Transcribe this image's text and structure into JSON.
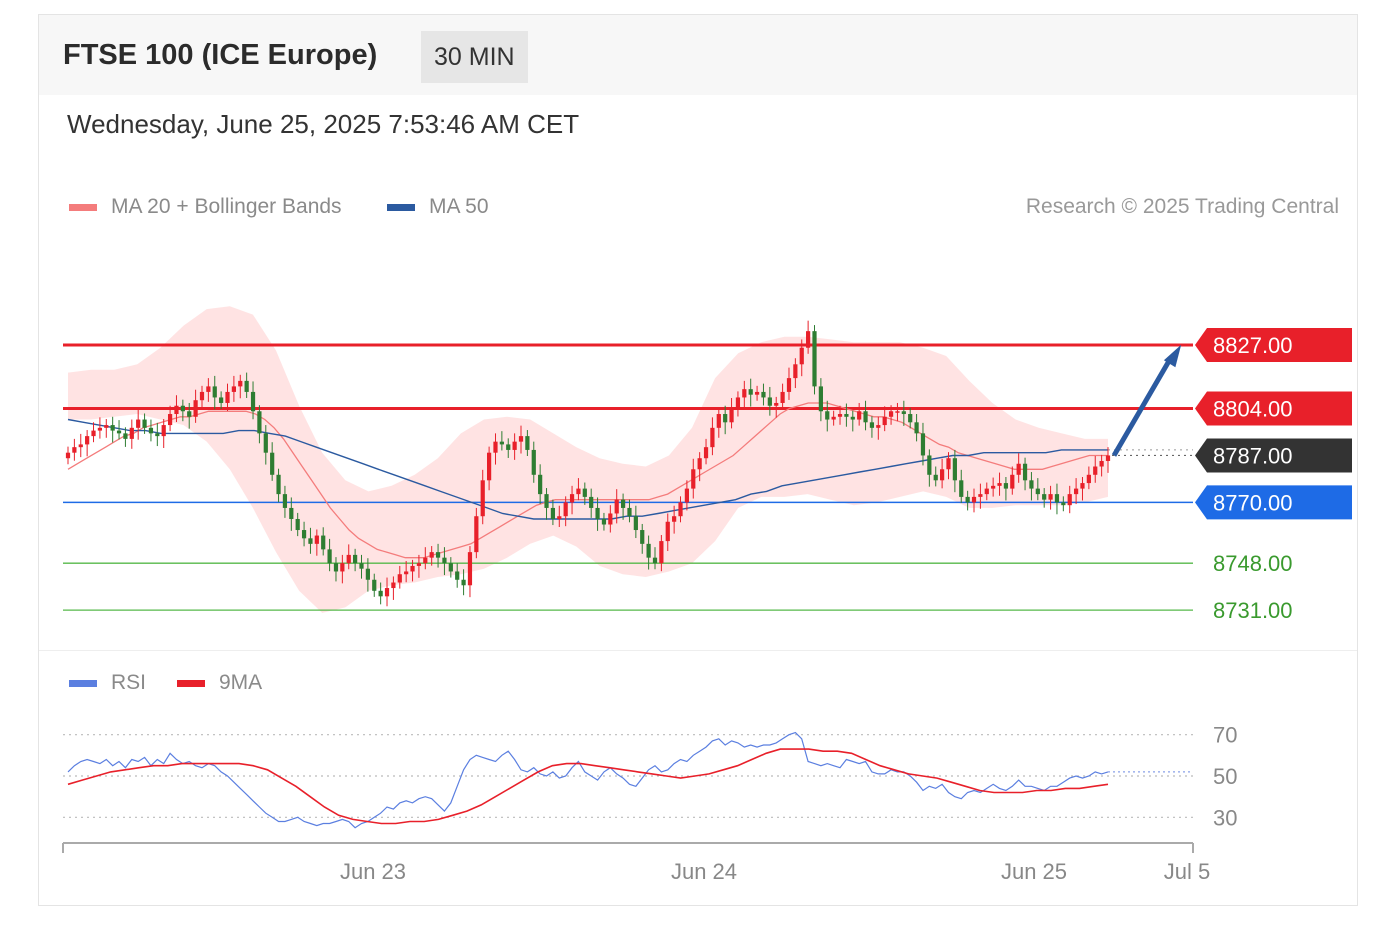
{
  "header": {
    "title": "FTSE 100 (ICE Europe)",
    "interval": "30 MIN",
    "datetime": "Wednesday, June 25, 2025 7:53:46 AM CET"
  },
  "legend": {
    "ma20": {
      "label": "MA 20 + Bollinger Bands",
      "color": "#f47c7c"
    },
    "ma50": {
      "label": "MA 50",
      "color": "#2b5aa0"
    },
    "credit": "Research © 2025 Trading Central"
  },
  "rsi_legend": {
    "rsi": {
      "label": "RSI",
      "color": "#5b7fe0"
    },
    "ma9": {
      "label": "9MA",
      "color": "#e8202a"
    }
  },
  "colors": {
    "resistance": "#e8202a",
    "pivot": "#1e6be6",
    "support": "#56b84a",
    "last": "#333333",
    "candle_up": "#e8202a",
    "candle_down": "#2e7d32",
    "band": "#ffdede",
    "arrow": "#2b5aa0"
  },
  "chart_data": [
    {
      "type": "candlestick",
      "title": "FTSE 100 (ICE Europe)",
      "timeframe": "30 MIN",
      "ylim": [
        8722,
        8865
      ],
      "x_ticks": [
        "Jun 23",
        "Jun 24",
        "Jun 25",
        "Jul 5"
      ],
      "levels": [
        {
          "value": 8827,
          "label": "8827.00",
          "kind": "resistance"
        },
        {
          "value": 8804,
          "label": "8804.00",
          "kind": "resistance"
        },
        {
          "value": 8787,
          "label": "8787.00",
          "kind": "last"
        },
        {
          "value": 8770,
          "label": "8770.00",
          "kind": "pivot"
        },
        {
          "value": 8748,
          "label": "8748.00",
          "kind": "support"
        },
        {
          "value": 8731,
          "label": "8731.00",
          "kind": "support"
        }
      ],
      "close": [
        8788,
        8790,
        8791,
        8794,
        8796,
        8797,
        8798,
        8796,
        8795,
        8793,
        8797,
        8800,
        8797,
        8795,
        8794,
        8798,
        8802,
        8805,
        8803,
        8801,
        8807,
        8810,
        8812,
        8808,
        8806,
        8810,
        8812,
        8814,
        8810,
        8803,
        8795,
        8788,
        8780,
        8773,
        8768,
        8764,
        8760,
        8757,
        8755,
        8758,
        8753,
        8748,
        8745,
        8748,
        8751,
        8748,
        8746,
        8742,
        8738,
        8736,
        8739,
        8741,
        8744,
        8745,
        8747,
        8748,
        8750,
        8752,
        8750,
        8748,
        8745,
        8742,
        8740,
        8752,
        8765,
        8778,
        8788,
        8792,
        8791,
        8789,
        8792,
        8794,
        8789,
        8780,
        8773,
        8768,
        8764,
        8765,
        8770,
        8773,
        8775,
        8772,
        8768,
        8764,
        8762,
        8766,
        8771,
        8768,
        8765,
        8760,
        8755,
        8750,
        8748,
        8756,
        8763,
        8765,
        8770,
        8775,
        8782,
        8786,
        8790,
        8797,
        8802,
        8799,
        8804,
        8808,
        8811,
        8809,
        8810,
        8808,
        8805,
        8806,
        8810,
        8815,
        8820,
        8826,
        8832,
        8812,
        8803,
        8800,
        8801,
        8802,
        8801,
        8800,
        8803,
        8799,
        8797,
        8798,
        8801,
        8803,
        8803,
        8802,
        8799,
        8795,
        8787,
        8780,
        8778,
        8782,
        8786,
        8778,
        8772,
        8770,
        8772,
        8773,
        8775,
        8776,
        8777,
        8775,
        8780,
        8784,
        8778,
        8775,
        8773,
        8771,
        8773,
        8770,
        8769,
        8773,
        8775,
        8777,
        8780,
        8783,
        8785,
        8787
      ],
      "ma20": [
        8782,
        8784,
        8786,
        8788,
        8790,
        8792,
        8794,
        8795,
        8797,
        8798,
        8799,
        8800,
        8801,
        8801,
        8802,
        8803,
        8803,
        8803,
        8803,
        8803,
        8802,
        8800,
        8797,
        8793,
        8788,
        8783,
        8778,
        8773,
        8768,
        8764,
        8760,
        8757,
        8755,
        8753,
        8752,
        8751,
        8750,
        8750,
        8750,
        8751,
        8752,
        8753,
        8754,
        8755,
        8757,
        8759,
        8761,
        8763,
        8765,
        8767,
        8769,
        8770,
        8771,
        8771,
        8771,
        8771,
        8771,
        8771,
        8771,
        8771,
        8771,
        8771,
        8771,
        8772,
        8773,
        8775,
        8777,
        8779,
        8781,
        8783,
        8785,
        8787,
        8790,
        8793,
        8796,
        8799,
        8802,
        8804,
        8805,
        8806,
        8806,
        8806,
        8805,
        8804,
        8803,
        8802,
        8801,
        8801,
        8800,
        8799,
        8797,
        8795,
        8793,
        8791,
        8790,
        8788,
        8787,
        8786,
        8785,
        8784,
        8783,
        8782,
        8782,
        8782,
        8782,
        8783,
        8784,
        8785,
        8786,
        8787,
        8787,
        8787
      ],
      "ma50": [
        8800,
        8799,
        8798,
        8797,
        8796,
        8796,
        8795,
        8795,
        8795,
        8795,
        8795,
        8796,
        8796,
        8795,
        8794,
        8792,
        8790,
        8788,
        8786,
        8784,
        8782,
        8780,
        8778,
        8776,
        8774,
        8772,
        8770,
        8768,
        8766,
        8765,
        8764,
        8764,
        8764,
        8764,
        8764,
        8764,
        8765,
        8765,
        8766,
        8767,
        8768,
        8769,
        8770,
        8771,
        8773,
        8774,
        8776,
        8777,
        8778,
        8779,
        8780,
        8781,
        8782,
        8783,
        8784,
        8785,
        8786,
        8787,
        8787,
        8788,
        8788,
        8788,
        8788,
        8788,
        8789,
        8789,
        8789,
        8789
      ],
      "upper_band": [
        8817,
        8818,
        8818,
        8820,
        8826,
        8834,
        8840,
        8841,
        8838,
        8825,
        8805,
        8788,
        8778,
        8774,
        8776,
        8780,
        8786,
        8795,
        8800,
        8801,
        8800,
        8795,
        8790,
        8786,
        8784,
        8783,
        8787,
        8797,
        8815,
        8824,
        8828,
        8830,
        8830,
        8829,
        8828,
        8828,
        8828,
        8826,
        8823,
        8814,
        8806,
        8800,
        8797,
        8795,
        8793,
        8793
      ],
      "lower_band": [
        8800,
        8800,
        8801,
        8802,
        8800,
        8798,
        8792,
        8782,
        8768,
        8752,
        8738,
        8730,
        8732,
        8738,
        8740,
        8741,
        8743,
        8744,
        8746,
        8750,
        8755,
        8758,
        8754,
        8747,
        8744,
        8743,
        8745,
        8748,
        8756,
        8768,
        8772,
        8772,
        8773,
        8771,
        8769,
        8770,
        8772,
        8774,
        8772,
        8768,
        8768,
        8769,
        8769,
        8769,
        8770,
        8772
      ],
      "rsi": [
        52,
        55,
        57,
        58,
        57,
        56,
        58,
        55,
        57,
        54,
        58,
        57,
        59,
        55,
        58,
        56,
        61,
        58,
        56,
        57,
        55,
        54,
        56,
        55,
        52,
        50,
        47,
        44,
        41,
        38,
        35,
        32,
        30,
        28,
        28,
        29,
        30,
        28,
        27,
        26,
        27,
        27,
        28,
        29,
        28,
        25,
        27,
        28,
        30,
        32,
        35,
        34,
        37,
        38,
        37,
        39,
        40,
        39,
        36,
        33,
        37,
        45,
        53,
        58,
        60,
        59,
        58,
        57,
        60,
        62,
        58,
        53,
        52,
        54,
        51,
        50,
        52,
        49,
        50,
        54,
        57,
        52,
        50,
        48,
        52,
        54,
        51,
        49,
        46,
        45,
        49,
        53,
        55,
        52,
        53,
        56,
        58,
        57,
        60,
        62,
        64,
        67,
        68,
        65,
        67,
        66,
        64,
        65,
        64,
        65,
        65,
        66,
        68,
        70,
        71,
        68,
        57,
        56,
        55,
        56,
        55,
        54,
        58,
        57,
        56,
        57,
        52,
        51,
        51,
        53,
        52,
        52,
        50,
        47,
        43,
        45,
        44,
        46,
        42,
        40,
        39,
        42,
        43,
        42,
        44,
        46,
        44,
        43,
        45,
        48,
        45,
        45,
        44,
        43,
        45,
        45,
        47,
        49,
        50,
        49,
        50,
        52,
        51,
        52
      ],
      "rsi_ma": [
        46,
        48,
        50,
        52,
        53,
        54,
        55,
        55,
        56,
        56,
        56,
        56,
        56,
        55,
        53,
        49,
        45,
        40,
        35,
        31,
        29,
        28,
        27,
        27,
        28,
        28,
        29,
        31,
        33,
        36,
        40,
        44,
        48,
        52,
        55,
        56,
        56,
        55,
        54,
        53,
        52,
        51,
        50,
        49,
        50,
        51,
        53,
        55,
        58,
        61,
        63,
        63,
        63,
        62,
        62,
        61,
        58,
        55,
        53,
        51,
        50,
        49,
        47,
        45,
        43,
        42,
        42,
        42,
        43,
        43,
        44,
        44,
        45,
        46
      ],
      "rsi_levels": [
        70,
        50,
        30
      ]
    }
  ]
}
